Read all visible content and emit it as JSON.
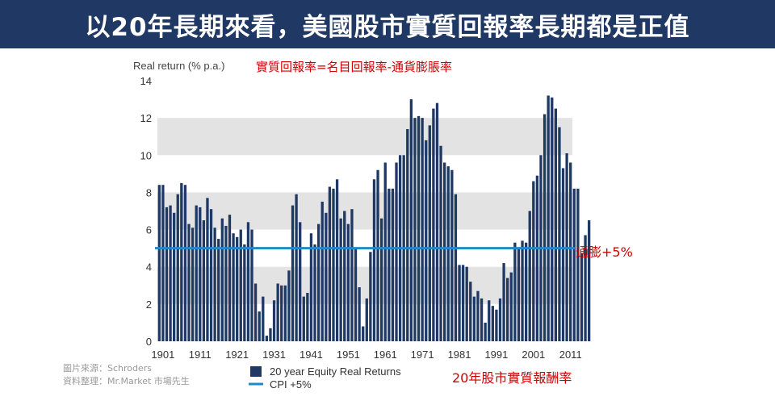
{
  "title": "以20年長期來看，美國股市實質回報率長期都是正值",
  "source": {
    "line1": "圖片來源：Schroders",
    "line2": "資料整理：Mr.Market 市場先生"
  },
  "annotations": {
    "formula": "實質回報率=名目回報率-通貨膨脹率",
    "cpi_label": "通膨+5%",
    "bottom_label": "20年股市實質報酬率"
  },
  "colors": {
    "bar": "#1f3864",
    "cpi_line": "#1f8ac8",
    "band": "#e3e3e3",
    "annotation": "#cc0000",
    "banner": "#1f3864"
  },
  "chart_data": {
    "type": "bar",
    "ylabel": "Real return (% p.a.)",
    "ylim": [
      0,
      14
    ],
    "yticks": [
      0,
      2,
      4,
      6,
      8,
      10,
      12,
      14
    ],
    "xtick_labels": [
      "1901",
      "1911",
      "1921",
      "1931",
      "1941",
      "1951",
      "1961",
      "1971",
      "1981",
      "1991",
      "2001",
      "2011"
    ],
    "alternating_bands": true,
    "legend_position": "bottom",
    "legend": {
      "bars": "20 year Equity Real Returns",
      "line": "CPI +5%"
    },
    "x_start": 1900,
    "x_end": 2011,
    "values": [
      8.4,
      8.4,
      7.2,
      7.3,
      6.9,
      7.9,
      8.5,
      8.4,
      6.3,
      6.1,
      7.3,
      7.2,
      6.5,
      7.7,
      7.1,
      6.1,
      5.5,
      6.6,
      6.2,
      6.8,
      5.8,
      5.6,
      6.0,
      5.2,
      6.4,
      6.0,
      3.1,
      1.6,
      2.4,
      0.3,
      0.7,
      2.2,
      3.1,
      3.0,
      3.0,
      3.8,
      7.3,
      7.9,
      6.4,
      2.4,
      2.6,
      5.8,
      5.2,
      6.3,
      7.5,
      6.9,
      8.3,
      8.2,
      8.7,
      6.6,
      7.0,
      6.3,
      7.1,
      5.0,
      2.9,
      0.8,
      2.3,
      4.8,
      8.7,
      9.2,
      6.6,
      9.6,
      8.2,
      8.2,
      9.6,
      10.0,
      10.0,
      11.4,
      13.0,
      12.0,
      12.1,
      12.0,
      10.8,
      11.6,
      12.5,
      12.8,
      10.5,
      9.6,
      9.4,
      9.2,
      7.9,
      4.1,
      4.1,
      4.0,
      3.2,
      2.4,
      2.7,
      2.3,
      1.0,
      2.2,
      1.9,
      1.7,
      2.3,
      4.2,
      3.4,
      3.7,
      5.3,
      5.0,
      5.4,
      5.3,
      7.0,
      8.6,
      8.9,
      10.0,
      12.2,
      13.2,
      13.1,
      12.5,
      11.5,
      9.3,
      10.1,
      9.6,
      8.2,
      8.2,
      4.7,
      5.7,
      6.5
    ],
    "reference_line": {
      "name": "CPI +5%",
      "value": 5
    }
  }
}
